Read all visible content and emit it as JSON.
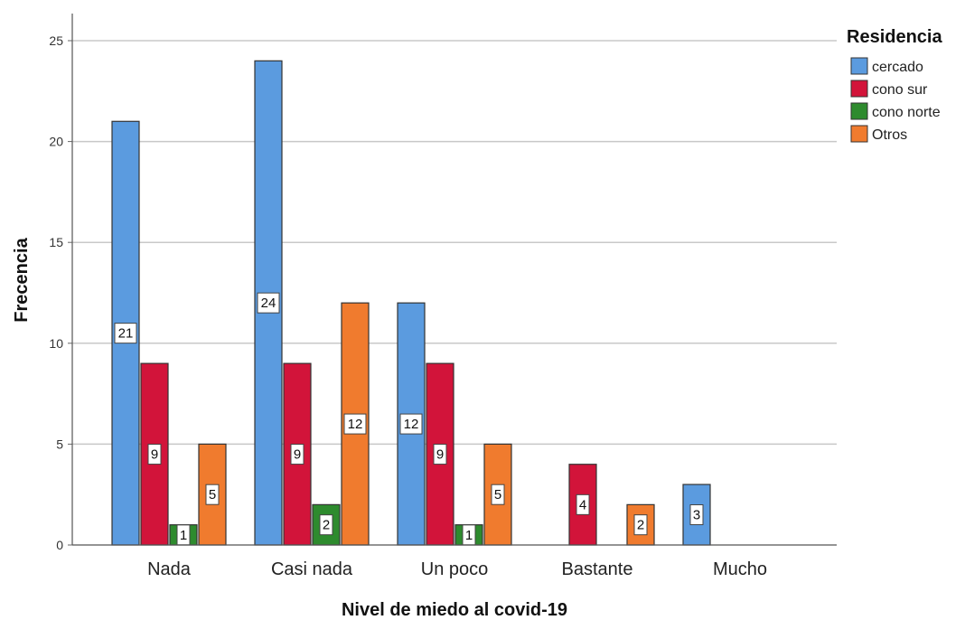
{
  "chart_data": {
    "type": "bar",
    "xlabel": "Nivel de miedo al covid-19",
    "ylabel": "Frecencia",
    "ylim": [
      0,
      25
    ],
    "yticks": [
      0,
      5,
      10,
      15,
      20,
      25
    ],
    "grid": true,
    "legend": {
      "title": "Residencia",
      "position": "top-right"
    },
    "categories": [
      "Nada",
      "Casi nada",
      "Un poco",
      "Bastante",
      "Mucho"
    ],
    "series": [
      {
        "name": "cercado",
        "color": "#5b9bdf",
        "values": [
          21,
          24,
          12,
          null,
          3
        ]
      },
      {
        "name": "cono sur",
        "color": "#d2143a",
        "values": [
          9,
          9,
          9,
          4,
          null
        ]
      },
      {
        "name": "cono norte",
        "color": "#2e8b2e",
        "values": [
          1,
          2,
          1,
          null,
          null
        ]
      },
      {
        "name": "Otros",
        "color": "#f07b2e",
        "values": [
          5,
          12,
          5,
          2,
          null
        ]
      }
    ]
  }
}
